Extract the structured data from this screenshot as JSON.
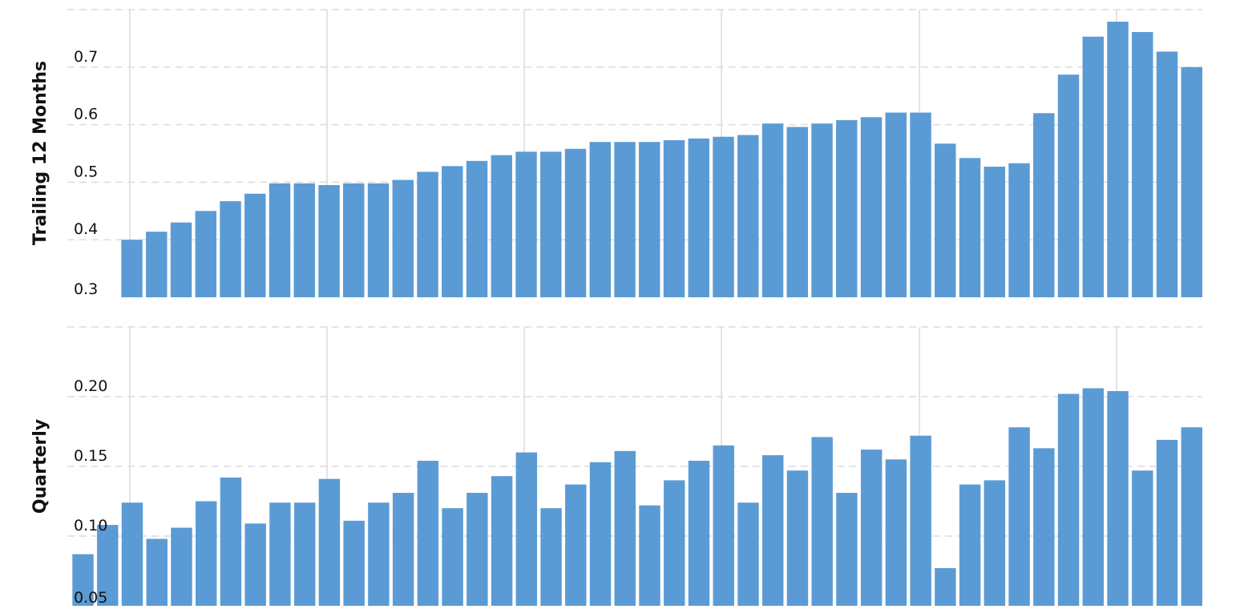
{
  "chart_data": [
    {
      "type": "bar",
      "title": "",
      "ylabel": "Trailing 12 Months",
      "ylim": [
        0.3,
        0.8
      ],
      "yticks": [
        0.3,
        0.4,
        0.5,
        0.6,
        0.7
      ],
      "ytick_labels": [
        "0.3",
        "0.4",
        "0.5",
        "0.6",
        "0.7"
      ],
      "grid": true,
      "color": "#5b9bd5",
      "values": [
        0.4,
        0.414,
        0.43,
        0.45,
        0.467,
        0.48,
        0.498,
        0.498,
        0.495,
        0.498,
        0.498,
        0.504,
        0.518,
        0.528,
        0.537,
        0.547,
        0.553,
        0.553,
        0.558,
        0.57,
        0.57,
        0.57,
        0.573,
        0.576,
        0.579,
        0.582,
        0.602,
        0.596,
        0.602,
        0.608,
        0.613,
        0.621,
        0.621,
        0.567,
        0.542,
        0.527,
        0.533,
        0.62,
        0.687,
        0.753,
        0.779,
        0.761,
        0.727,
        0.7
      ]
    },
    {
      "type": "bar",
      "title": "",
      "ylabel": "Quarterly",
      "ylim": [
        0.05,
        0.25
      ],
      "yticks": [
        0.05,
        0.1,
        0.15,
        0.2
      ],
      "ytick_labels": [
        "0.05",
        "0.10",
        "0.15",
        "0.20"
      ],
      "grid": true,
      "color": "#5b9bd5",
      "values": [
        0.087,
        0.108,
        0.124,
        0.098,
        0.106,
        0.125,
        0.142,
        0.109,
        0.124,
        0.124,
        0.141,
        0.111,
        0.124,
        0.131,
        0.154,
        0.12,
        0.131,
        0.143,
        0.16,
        0.12,
        0.137,
        0.153,
        0.161,
        0.122,
        0.14,
        0.154,
        0.165,
        0.124,
        0.158,
        0.147,
        0.171,
        0.131,
        0.162,
        0.155,
        0.172,
        0.077,
        0.137,
        0.14,
        0.178,
        0.163,
        0.202,
        0.206,
        0.204,
        0.147,
        0.169,
        0.178
      ]
    }
  ]
}
